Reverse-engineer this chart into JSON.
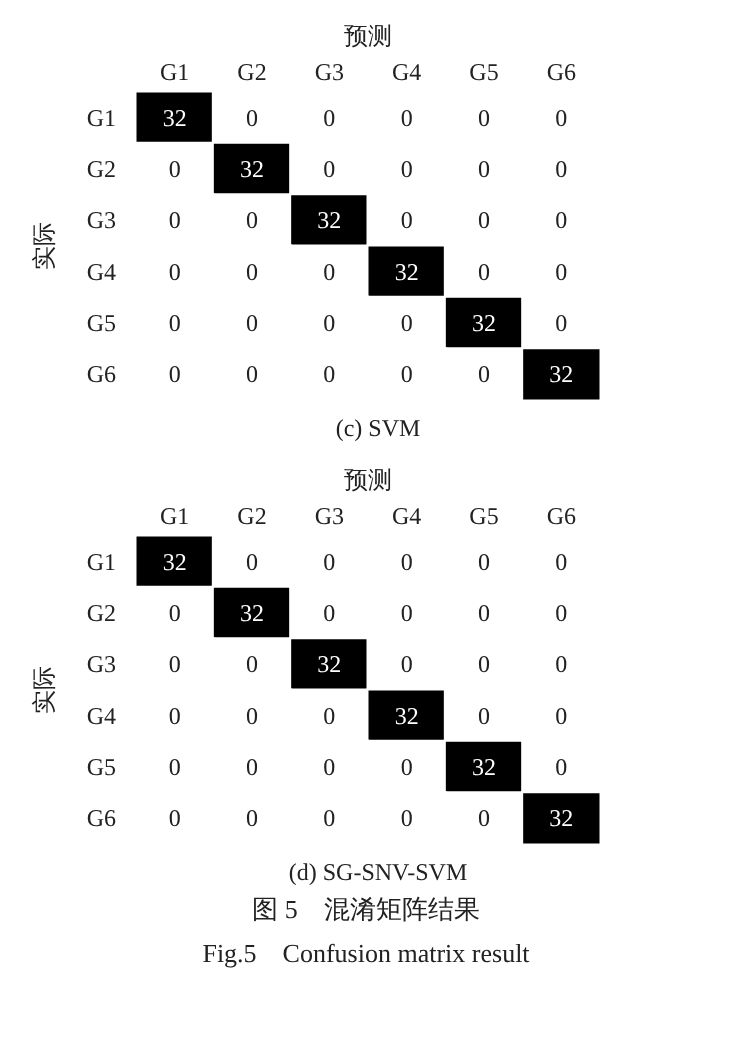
{
  "chart_data": [
    {
      "type": "heatmap",
      "title": "(c) SVM",
      "xlabel": "预测",
      "ylabel": "实际",
      "categories": [
        "G1",
        "G2",
        "G3",
        "G4",
        "G5",
        "G6"
      ],
      "y_categories": [
        "G1",
        "G2",
        "G3",
        "G4",
        "G5",
        "G6"
      ],
      "cells": [
        [
          32,
          0,
          0,
          0,
          0,
          0
        ],
        [
          0,
          32,
          0,
          0,
          0,
          0
        ],
        [
          0,
          0,
          32,
          0,
          0,
          0
        ],
        [
          0,
          0,
          0,
          32,
          0,
          0
        ],
        [
          0,
          0,
          0,
          0,
          32,
          0
        ],
        [
          0,
          0,
          0,
          0,
          0,
          32
        ]
      ],
      "data_labels": true
    },
    {
      "type": "heatmap",
      "title": "(d) SG-SNV-SVM",
      "xlabel": "预测",
      "ylabel": "实际",
      "categories": [
        "G1",
        "G2",
        "G3",
        "G4",
        "G5",
        "G6"
      ],
      "y_categories": [
        "G1",
        "G2",
        "G3",
        "G4",
        "G5",
        "G6"
      ],
      "cells": [
        [
          32,
          0,
          0,
          0,
          0,
          0
        ],
        [
          0,
          32,
          0,
          0,
          0,
          0
        ],
        [
          0,
          0,
          32,
          0,
          0,
          0
        ],
        [
          0,
          0,
          0,
          32,
          0,
          0
        ],
        [
          0,
          0,
          0,
          0,
          32,
          0
        ],
        [
          0,
          0,
          0,
          0,
          0,
          32
        ]
      ],
      "data_labels": true,
      "annotations": [
        "图 5　混淆矩阵结果",
        "Fig.5　Confusion matrix result"
      ]
    }
  ]
}
